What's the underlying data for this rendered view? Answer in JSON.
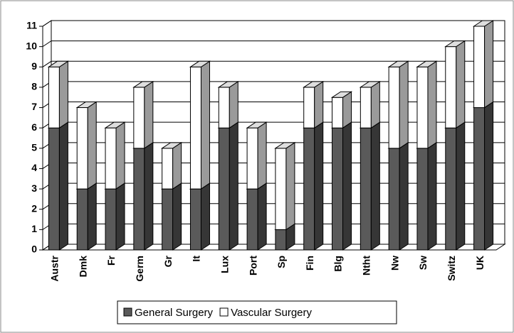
{
  "chart_data": {
    "type": "bar",
    "stacked": true,
    "categories": [
      "Austr",
      "Dmk",
      "Fr",
      "Germ",
      "Gr",
      "It",
      "Lux",
      "Port",
      "Sp",
      "Fin",
      "Blg",
      "Ntht",
      "Nw",
      "Sw",
      "Switz",
      "UK"
    ],
    "series": [
      {
        "name": "General Surgery",
        "color": "#5a5a5a",
        "values": [
          6,
          3,
          3,
          5,
          3,
          3,
          6,
          3,
          1,
          6,
          6,
          6,
          5,
          5,
          6,
          7
        ]
      },
      {
        "name": "Vascular Surgery",
        "color": "#ffffff",
        "values": [
          3,
          4,
          3,
          3,
          2,
          6,
          2,
          3,
          4,
          2,
          1.5,
          2,
          4,
          4,
          4,
          4
        ]
      }
    ],
    "ylim": [
      0,
      11
    ],
    "yticks": [
      0,
      1,
      2,
      3,
      4,
      5,
      6,
      7,
      8,
      9,
      10,
      11
    ],
    "grid": true,
    "legend": "bottom"
  }
}
